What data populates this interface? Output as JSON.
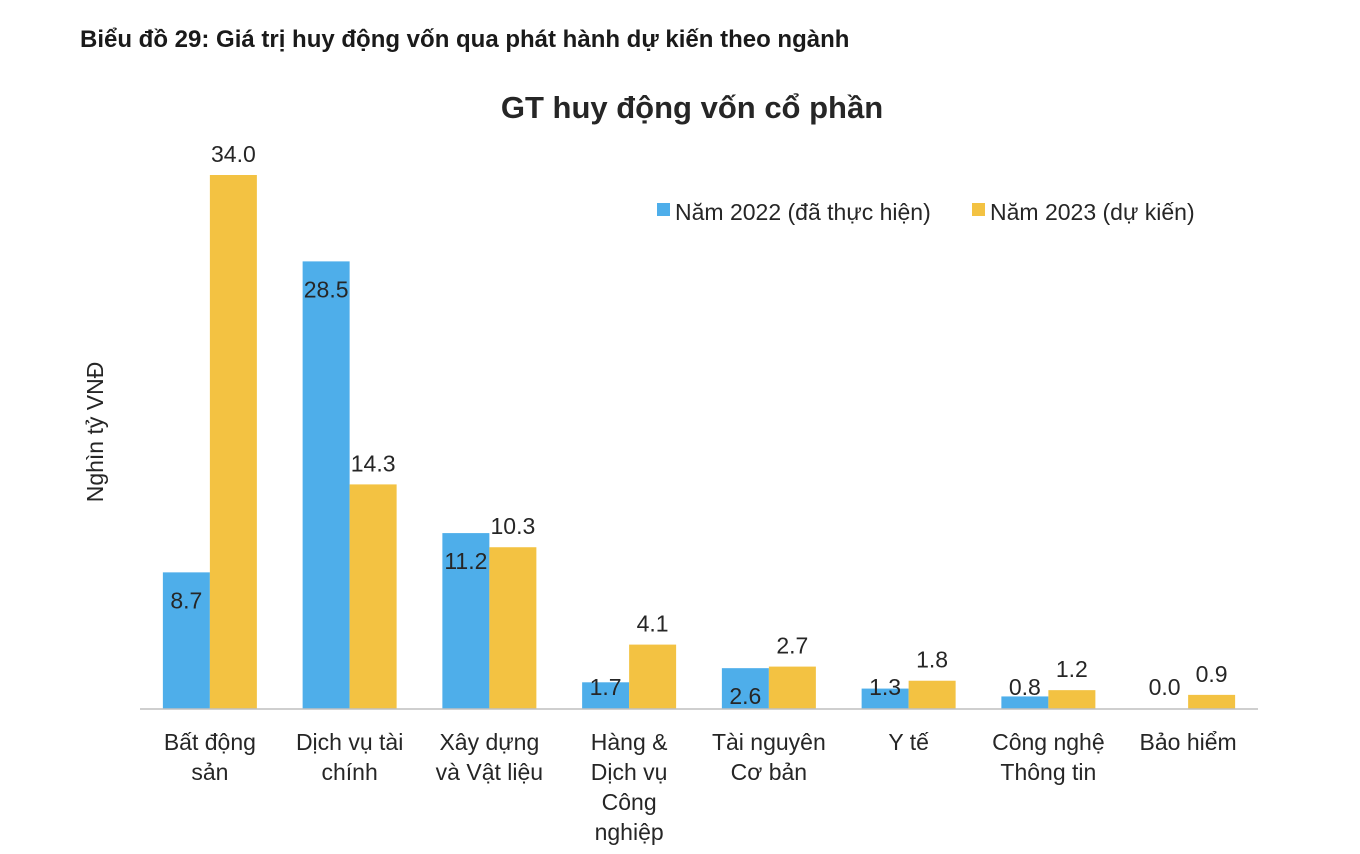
{
  "page": {
    "heading": "Biểu đồ 29: Giá trị huy động vốn qua phát hành dự kiến theo ngành"
  },
  "chart_data": {
    "type": "bar",
    "title": "GT huy động vốn cổ phần",
    "ylabel": "Nghìn tỷ VNĐ",
    "xlabel": "",
    "ylim": [
      0,
      34.0
    ],
    "grid": false,
    "legend_position": "top-right",
    "categories": [
      [
        "Bất động",
        "sản"
      ],
      [
        "Dịch vụ tài",
        "chính"
      ],
      [
        "Xây dựng",
        "và Vật liệu"
      ],
      [
        "Hàng &",
        "Dịch vụ",
        "Công",
        "nghiệp"
      ],
      [
        "Tài nguyên",
        "Cơ bản"
      ],
      [
        "Y tế"
      ],
      [
        "Công nghệ",
        "Thông tin"
      ],
      [
        "Bảo hiểm"
      ]
    ],
    "series": [
      {
        "name": "Năm 2022 (đã thực hiện)",
        "color": "#4eaeea",
        "values": [
          8.7,
          28.5,
          11.2,
          1.7,
          2.6,
          1.3,
          0.8,
          0.0
        ],
        "labels": [
          "8.7",
          "28.5",
          "11.2",
          "1.7",
          "2.6",
          "1.3",
          "0.8",
          "0.0"
        ]
      },
      {
        "name": "Năm 2023 (dự kiến)",
        "color": "#f3c242",
        "values": [
          34.0,
          14.3,
          10.3,
          4.1,
          2.7,
          1.8,
          1.2,
          0.9
        ],
        "labels": [
          "34.0",
          "14.3",
          "10.3",
          "4.1",
          "2.7",
          "1.8",
          "1.2",
          "0.9"
        ]
      }
    ]
  }
}
